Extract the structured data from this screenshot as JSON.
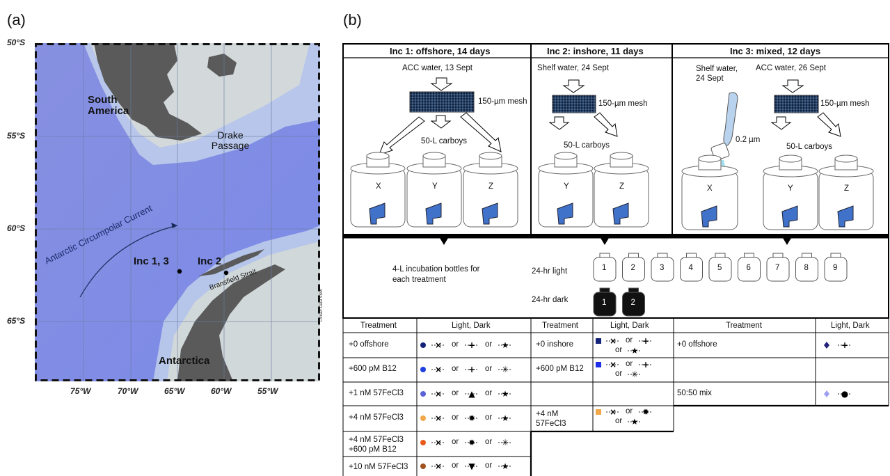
{
  "panel_a": {
    "label": "(a)",
    "lat_labels": [
      "50°S",
      "55°S",
      "60°S",
      "65°S"
    ],
    "lon_labels": [
      "75°W",
      "70°W",
      "65°W",
      "60°W",
      "55°W"
    ],
    "place_south_america": "South America",
    "place_drake": "Drake Passage",
    "place_acc": "Antarctic Circumpolar Current",
    "place_inc13": "Inc 1, 3",
    "place_inc2": "Inc 2",
    "place_bransfield": "Bransfield Strait",
    "place_antarctica": "Antarctica",
    "credit": "Ocean Data View",
    "colors": {
      "ocean": "#7f8de6",
      "shelf": "#c9d6ec",
      "land": "#5b5b5b"
    }
  },
  "panel_b": {
    "label": "(b)",
    "inc1": {
      "title": "Inc 1: offshore, 14 days",
      "water": "ACC water, 13 Sept",
      "mesh": "150-µm mesh",
      "carboys": "50-L carboys",
      "x": "X",
      "y": "Y",
      "z": "Z"
    },
    "inc2": {
      "title": "Inc 2: inshore, 11 days",
      "water": "Shelf water, 24 Sept",
      "mesh": "150-µm mesh",
      "carboys": "50-L carboys",
      "y": "Y",
      "z": "Z"
    },
    "inc3": {
      "title": "Inc 3: mixed, 12 days",
      "shelf_water": "Shelf water, 24 Sept",
      "acc_water": "ACC water, 26 Sept",
      "filter": "0.2 µm",
      "mesh": "150-µm mesh",
      "carboys": "50-L carboys",
      "x": "X",
      "y": "Y",
      "z": "Z"
    },
    "bottles": {
      "caption": "4-L incubation bottles for each treatment",
      "light_label": "24-hr light",
      "dark_label": "24-hr dark",
      "light_numbers": [
        "1",
        "2",
        "3",
        "4",
        "5",
        "6",
        "7",
        "8",
        "9"
      ],
      "dark_numbers": [
        "1",
        "2"
      ]
    },
    "table": {
      "h_treatment": "Treatment",
      "h_light_dark": "Light, Dark",
      "inc1_rows": [
        "+0 offshore",
        "+600 pM B12",
        "+1 nM 57FeCl3",
        "+4 nM 57FeCl3",
        "+4 nM 57FeCl3 +600 pM B12",
        "+10 nM 57FeCl3"
      ],
      "inc2_rows": [
        "+0 inshore",
        "+600 pM B12",
        "",
        "+4 nM 57FeCl3"
      ],
      "inc3_rows": [
        "+0 offshore",
        "",
        "50:50 mix"
      ],
      "or": "or",
      "colors": {
        "inc1": [
          "#14237a",
          "#1f3fe0",
          "#5a62d8",
          "#f2a84a",
          "#e85a1a",
          "#a0521f"
        ],
        "inc2": [
          "#13237a",
          "#1f2fe8",
          "#f2a84a"
        ],
        "inc3": [
          "#22227a",
          "#9f9ff2"
        ]
      }
    }
  }
}
